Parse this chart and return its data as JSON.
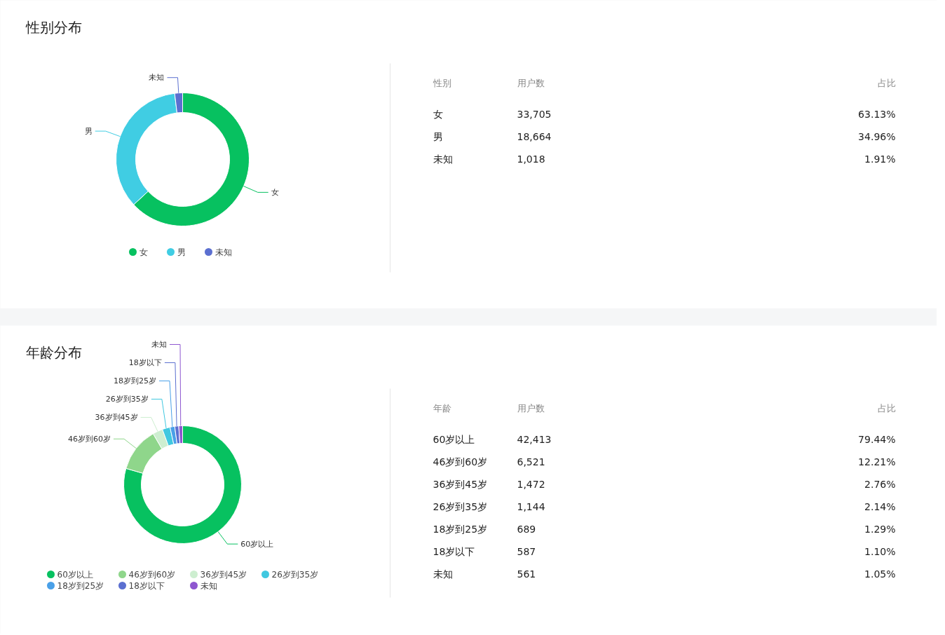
{
  "chart_data": [
    {
      "type": "donut",
      "title": "性别分布",
      "categories": [
        "女",
        "男",
        "未知"
      ],
      "values": [
        63.13,
        34.96,
        1.91
      ],
      "colors": [
        "#07c160",
        "#40cde3",
        "#5b6fd0"
      ],
      "annotations": [
        "性别",
        "用户数",
        "占比",
        "33,705",
        "18,664",
        "1,018",
        "63.13%",
        "34.96%",
        "1.91%"
      ],
      "legend": "bottom"
    },
    {
      "type": "donut",
      "title": "年龄分布",
      "categories": [
        "60岁以上",
        "46岁到60岁",
        "36岁到45岁",
        "26岁到35岁",
        "18岁到25岁",
        "18岁以下",
        "未知"
      ],
      "values": [
        79.44,
        12.21,
        2.76,
        2.14,
        1.29,
        1.1,
        1.05
      ],
      "colors": [
        "#07c160",
        "#8fd68b",
        "#cdeed0",
        "#40c8e0",
        "#4aa0e8",
        "#5b6fd0",
        "#8e57d0"
      ],
      "annotations": [
        "年龄",
        "用户数",
        "占比",
        "42,413",
        "6,521",
        "1,472",
        "1,144",
        "689",
        "587",
        "561",
        "79.44%",
        "12.21%",
        "2.76%",
        "2.14%",
        "1.29%",
        "1.10%",
        "1.05%"
      ],
      "legend": "bottom"
    }
  ]
}
